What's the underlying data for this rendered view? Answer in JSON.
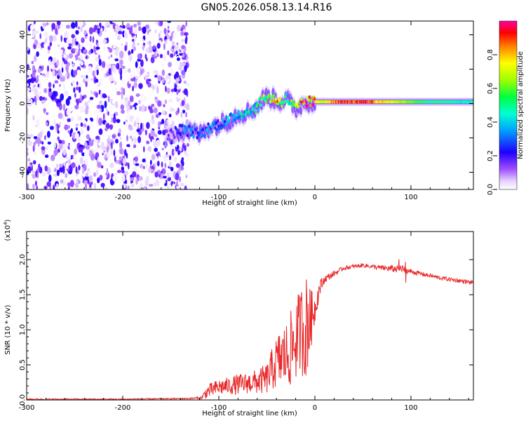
{
  "title": "GN05.2026.058.13.14.R16",
  "chart_data": [
    {
      "type": "heatmap",
      "name": "spectrogram",
      "xlabel": "Height of straight line (km)",
      "ylabel": "Frequency (Hz)",
      "xlim": [
        -300,
        165
      ],
      "ylim": [
        -50,
        48
      ],
      "xticks": [
        -300,
        -200,
        -100,
        0,
        100
      ],
      "yticks": [
        -40,
        -20,
        0,
        20,
        40
      ],
      "colorbar": {
        "label": "Normalized spectral amplitude",
        "range": [
          0,
          1
        ],
        "ticks": [
          "0.0",
          "0.2",
          "0.4",
          "0.6",
          "0.8"
        ],
        "colormap": [
          "#e6d2ff",
          "#7a00ff",
          "#0000ff",
          "#00c8ff",
          "#00ff80",
          "#80ff00",
          "#ffff00",
          "#ff8000",
          "#ff0000",
          "#ff00ff"
        ]
      },
      "noise_region": {
        "x_range": [
          -300,
          -132
        ],
        "level": 0.3
      },
      "tone_track": [
        {
          "x": -150,
          "f": -18,
          "amp": 0.2
        },
        {
          "x": -140,
          "f": -15,
          "amp": 0.35
        },
        {
          "x": -130,
          "f": -16,
          "amp": 0.4
        },
        {
          "x": -120,
          "f": -18,
          "amp": 0.3
        },
        {
          "x": -110,
          "f": -14,
          "amp": 0.4
        },
        {
          "x": -100,
          "f": -12,
          "amp": 0.35
        },
        {
          "x": -90,
          "f": -10,
          "amp": 0.45
        },
        {
          "x": -80,
          "f": -6,
          "amp": 0.45
        },
        {
          "x": -70,
          "f": -5,
          "amp": 0.5
        },
        {
          "x": -60,
          "f": -2,
          "amp": 0.55
        },
        {
          "x": -55,
          "f": 2,
          "amp": 0.6
        },
        {
          "x": -50,
          "f": 4,
          "amp": 0.7
        },
        {
          "x": -45,
          "f": 3,
          "amp": 0.75
        },
        {
          "x": -40,
          "f": 2,
          "amp": 0.85
        },
        {
          "x": -35,
          "f": 1,
          "amp": 0.7
        },
        {
          "x": -30,
          "f": 3,
          "amp": 0.6
        },
        {
          "x": -25,
          "f": 0,
          "amp": 0.55
        },
        {
          "x": -20,
          "f": -3,
          "amp": 0.7
        },
        {
          "x": -15,
          "f": -1,
          "amp": 0.85
        },
        {
          "x": -10,
          "f": 1,
          "amp": 0.95
        },
        {
          "x": -5,
          "f": 1,
          "amp": 0.95
        },
        {
          "x": 0,
          "f": 1,
          "amp": 0.8
        },
        {
          "x": 10,
          "f": 1,
          "amp": 0.75
        },
        {
          "x": 20,
          "f": 1,
          "amp": 0.9
        },
        {
          "x": 30,
          "f": 1,
          "amp": 0.95
        },
        {
          "x": 40,
          "f": 1,
          "amp": 0.9
        },
        {
          "x": 50,
          "f": 1,
          "amp": 0.95
        },
        {
          "x": 60,
          "f": 1,
          "amp": 0.9
        },
        {
          "x": 70,
          "f": 1,
          "amp": 0.8
        },
        {
          "x": 80,
          "f": 1,
          "amp": 0.75
        },
        {
          "x": 90,
          "f": 1,
          "amp": 0.7
        },
        {
          "x": 100,
          "f": 1,
          "amp": 0.65
        },
        {
          "x": 110,
          "f": 1,
          "amp": 0.6
        },
        {
          "x": 120,
          "f": 1,
          "amp": 0.55
        },
        {
          "x": 140,
          "f": 1,
          "amp": 0.55
        },
        {
          "x": 165,
          "f": 1,
          "amp": 0.5
        }
      ]
    },
    {
      "type": "line",
      "name": "snr",
      "xlabel": "Height of straight line (km)",
      "ylabel": "SNR (10 * v/v)",
      "y_multiplier": "(x10",
      "y_multiplier_exp": "4",
      "y_multiplier_close": ")",
      "xlim": [
        -300,
        165
      ],
      "ylim": [
        0,
        2.4
      ],
      "xticks": [
        -300,
        -200,
        -100,
        0,
        100
      ],
      "yticks": [
        0.0,
        0.5,
        1.0,
        1.5,
        2.0
      ],
      "line_color": "#e8282a",
      "series": [
        {
          "name": "SNR",
          "x": [
            -300,
            -200,
            -132,
            -118,
            -112,
            -100,
            -90,
            -80,
            -70,
            -60,
            -50,
            -42,
            -35,
            -28,
            -22,
            -15,
            -10,
            -5,
            0,
            5,
            10,
            20,
            30,
            40,
            50,
            60,
            70,
            80,
            90,
            100,
            110,
            120,
            130,
            140,
            150,
            165
          ],
          "y": [
            0.01,
            0.01,
            0.02,
            0.03,
            0.12,
            0.18,
            0.2,
            0.22,
            0.24,
            0.26,
            0.3,
            0.5,
            0.6,
            0.65,
            0.8,
            1.0,
            1.05,
            1.1,
            1.3,
            1.6,
            1.72,
            1.8,
            1.88,
            1.9,
            1.92,
            1.9,
            1.88,
            1.87,
            1.86,
            1.83,
            1.8,
            1.77,
            1.74,
            1.72,
            1.7,
            1.67
          ],
          "noise": [
            0.01,
            0.01,
            0.01,
            0.02,
            0.1,
            0.12,
            0.12,
            0.15,
            0.15,
            0.18,
            0.22,
            0.35,
            0.45,
            0.5,
            0.6,
            0.6,
            0.8,
            0.5,
            0.2,
            0.12,
            0.06,
            0.04,
            0.03,
            0.03,
            0.03,
            0.03,
            0.04,
            0.05,
            0.06,
            0.04,
            0.03,
            0.03,
            0.03,
            0.03,
            0.03,
            0.03
          ]
        }
      ]
    }
  ]
}
